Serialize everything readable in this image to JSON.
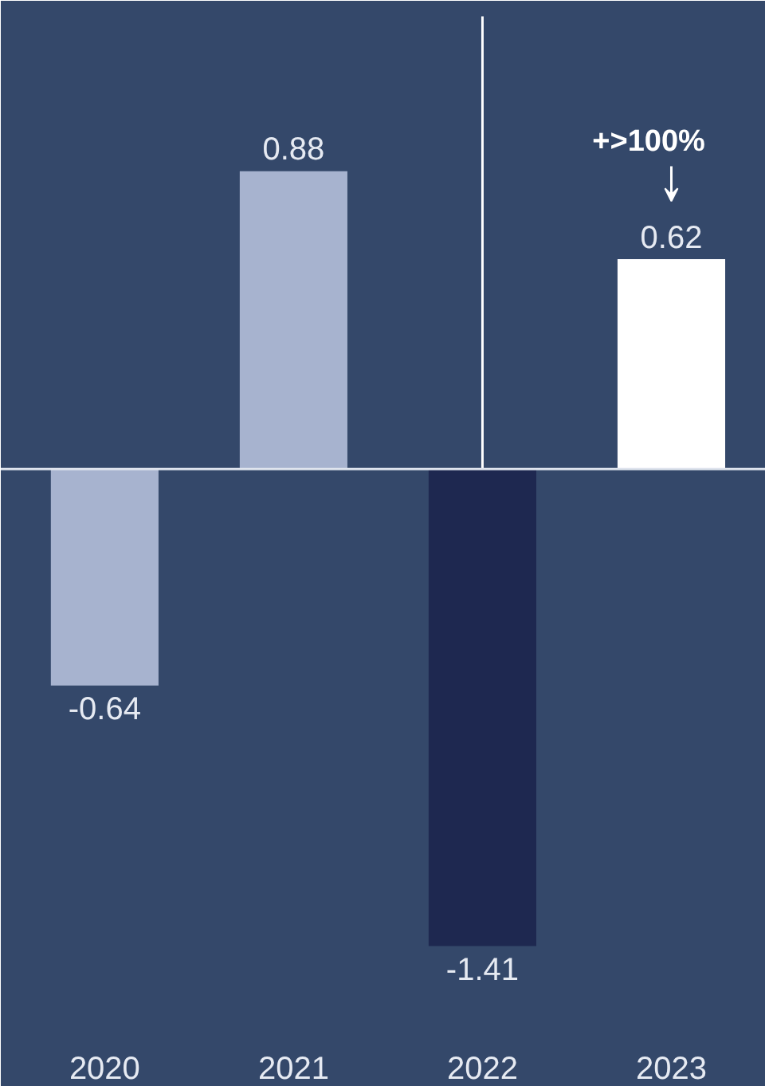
{
  "chart_data": {
    "type": "bar",
    "categories": [
      "2020",
      "2021",
      "2022",
      "2023"
    ],
    "values": [
      -0.64,
      0.88,
      -1.41,
      0.62
    ],
    "colors": [
      "#a7b3cf",
      "#a7b3cf",
      "#1e2850",
      "#ffffff"
    ],
    "data_labels": true,
    "ref_lines": [
      {
        "axis": "x",
        "value": "2022",
        "color": "#ffffff"
      }
    ],
    "annotations": [
      "+>100%"
    ],
    "grid": false
  }
}
